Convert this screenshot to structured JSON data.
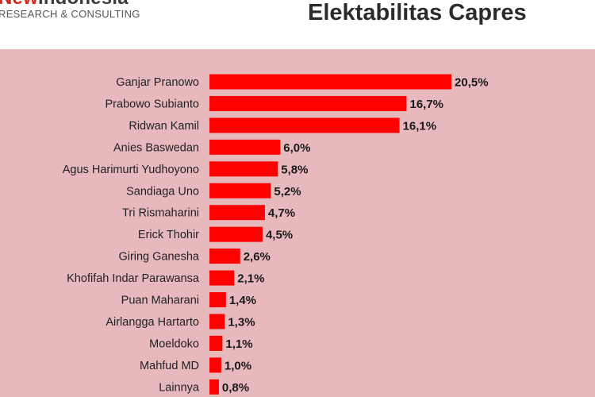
{
  "header": {
    "logo_new": "New",
    "logo_indonesia": "Indonesia",
    "logo_subtitle": "RESEARCH & CONSULTING"
  },
  "chart_data": {
    "type": "bar",
    "orientation": "horizontal",
    "title": "Elektabilitas Capres",
    "categories": [
      "Ganjar Pranowo",
      "Prabowo Subianto",
      "Ridwan Kamil",
      "Anies Baswedan",
      "Agus Harimurti Yudhoyono",
      "Sandiaga Uno",
      "Tri Rismaharini",
      "Erick Thohir",
      "Giring Ganesha",
      "Khofifah Indar Parawansa",
      "Puan Maharani",
      "Airlangga Hartarto",
      "Moeldoko",
      "Mahfud MD",
      "Lainnya"
    ],
    "values": [
      20.5,
      16.7,
      16.1,
      6.0,
      5.8,
      5.2,
      4.7,
      4.5,
      2.6,
      2.1,
      1.4,
      1.3,
      1.1,
      1.0,
      0.8
    ],
    "value_labels": [
      "20,5%",
      "16,7%",
      "16,1%",
      "6,0%",
      "5,8%",
      "5,2%",
      "4,7%",
      "4,5%",
      "2,6%",
      "2,1%",
      "1,4%",
      "1,3%",
      "1,1%",
      "1,0%",
      "0,8%"
    ],
    "xlabel": "",
    "ylabel": "",
    "grid": false,
    "legend": false,
    "colors": {
      "bar": "#ff0000",
      "background": "#e8b9bc"
    }
  }
}
